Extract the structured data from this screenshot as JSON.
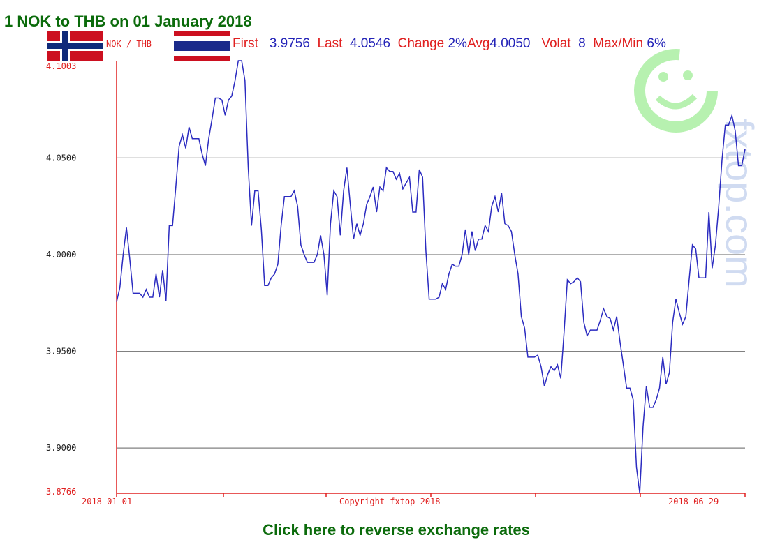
{
  "title": "1 NOK to THB on 01 January 2018",
  "pair_label": "NOK / THB",
  "stats": {
    "first_label": "First",
    "first_value": "3.9756",
    "last_label": "Last",
    "last_value": "4.0546",
    "change_label": "Change",
    "change_value": "2%",
    "avg_label": "Avg",
    "avg_value": "4.0050",
    "volat_label": "Volat",
    "volat_value": "8",
    "maxmin_label": "Max/Min",
    "maxmin_value": "6%"
  },
  "flags": {
    "left": "norway-flag-icon",
    "right": "thailand-flag-icon"
  },
  "watermark": "fxtop.com",
  "colors": {
    "line": "#2b2bc0",
    "axis": "#e02020",
    "grid": "#808080",
    "title": "#0b6b0b",
    "watermark": "#b0f0a8"
  },
  "chart_data": {
    "type": "line",
    "ylim": [
      3.8766,
      4.1003
    ],
    "y_ticks": [
      "3.8766",
      "3.9000",
      "3.9500",
      "4.0000",
      "4.0500",
      "4.1003"
    ],
    "gridlines": [
      3.9,
      3.95,
      4.0,
      4.05
    ],
    "x_start_label": "2018-01-01",
    "x_end_label": "2018-06-29",
    "center_label": "Copyright fxtop 2018",
    "series": [
      {
        "values": [
          3.9756,
          3.983,
          4.0,
          4.014,
          3.998,
          3.98,
          3.98,
          3.98,
          3.978,
          3.982,
          3.978,
          3.978,
          3.99,
          3.978,
          3.992,
          3.976,
          4.015,
          4.015,
          4.035,
          4.056,
          4.062,
          4.055,
          4.066,
          4.06,
          4.06,
          4.06,
          4.052,
          4.046,
          4.06,
          4.07,
          4.081,
          4.081,
          4.08,
          4.072,
          4.08,
          4.082,
          4.09,
          4.1003,
          4.1003,
          4.09,
          4.045,
          4.015,
          4.033,
          4.033,
          4.013,
          3.984,
          3.984,
          3.988,
          3.99,
          3.995,
          4.015,
          4.03,
          4.03,
          4.03,
          4.033,
          4.025,
          4.005,
          4.0,
          3.996,
          3.996,
          3.996,
          4.0,
          4.01,
          4.0,
          3.979,
          4.016,
          4.033,
          4.03,
          4.01,
          4.033,
          4.045,
          4.026,
          4.008,
          4.016,
          4.01,
          4.016,
          4.026,
          4.03,
          4.035,
          4.022,
          4.035,
          4.033,
          4.045,
          4.043,
          4.043,
          4.039,
          4.042,
          4.034,
          4.037,
          4.04,
          4.022,
          4.022,
          4.044,
          4.04,
          4.002,
          3.977,
          3.977,
          3.977,
          3.978,
          3.985,
          3.982,
          3.99,
          3.995,
          3.994,
          3.994,
          4.0,
          4.013,
          4.0,
          4.012,
          4.002,
          4.008,
          4.008,
          4.015,
          4.012,
          4.025,
          4.03,
          4.022,
          4.032,
          4.016,
          4.015,
          4.012,
          4.0,
          3.99,
          3.968,
          3.962,
          3.947,
          3.947,
          3.947,
          3.948,
          3.942,
          3.932,
          3.938,
          3.942,
          3.94,
          3.943,
          3.936,
          3.96,
          3.987,
          3.985,
          3.986,
          3.988,
          3.986,
          3.965,
          3.958,
          3.961,
          3.961,
          3.961,
          3.966,
          3.972,
          3.968,
          3.967,
          3.961,
          3.968,
          3.955,
          3.943,
          3.931,
          3.931,
          3.925,
          3.89,
          3.8766,
          3.911,
          3.932,
          3.921,
          3.921,
          3.925,
          3.931,
          3.947,
          3.933,
          3.939,
          3.965,
          3.977,
          3.97,
          3.964,
          3.968,
          3.987,
          4.005,
          4.003,
          3.988,
          3.988,
          3.988,
          4.022,
          3.993,
          4.005,
          4.025,
          4.049,
          4.067,
          4.067,
          4.072,
          4.064,
          4.046,
          4.046,
          4.0546
        ]
      }
    ]
  },
  "reverse_link": "Click here to reverse exchange rates"
}
